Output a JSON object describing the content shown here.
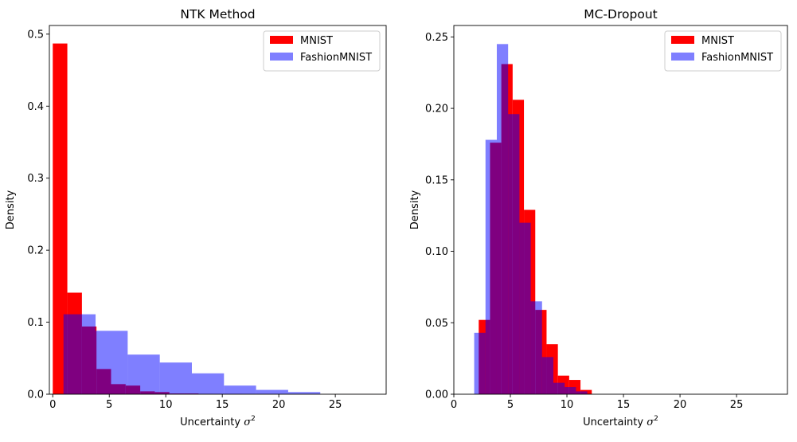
{
  "chart_data": [
    {
      "type": "bar",
      "title": "NTK Method",
      "xlabel": "Uncertainty σ²",
      "xlabel_text": "Uncertainty ",
      "xlabel_symbol": "σ",
      "xlabel_sup": "2",
      "ylabel": "Density",
      "xlim": [
        -0.3,
        29.5
      ],
      "ylim": [
        0,
        0.512
      ],
      "xticks": [
        0,
        5,
        10,
        15,
        20,
        25
      ],
      "yticks": [
        0.0,
        0.1,
        0.2,
        0.3,
        0.4,
        0.5
      ],
      "ytick_labels": [
        "0.0",
        "0.1",
        "0.2",
        "0.3",
        "0.4",
        "0.5"
      ],
      "grid": false,
      "legend_position": "top-right",
      "series": [
        {
          "name": "MNIST",
          "color": "#ff0000",
          "alpha": 1.0,
          "bin_edges": [
            0.0,
            1.29,
            2.58,
            3.87,
            5.16,
            6.45,
            7.74,
            9.03,
            10.32,
            11.61,
            12.9,
            14.19,
            15.48,
            16.77,
            18.06,
            19.35,
            20.64,
            21.93,
            23.22,
            24.51,
            25.8,
            27.09,
            28.38
          ],
          "values": [
            0.487,
            0.141,
            0.094,
            0.035,
            0.014,
            0.012,
            0.004,
            0.003,
            0.001,
            0.001,
            0.0005,
            0.0004,
            0.0003,
            0.0002,
            0.0002,
            0.0001,
            0.0001,
            0.0001,
            0.0001,
            0.0001,
            0.0001,
            0.0001
          ]
        },
        {
          "name": "FashionMNIST",
          "color": "#0000ff",
          "alpha": 0.5,
          "bin_edges": [
            0.95,
            3.79,
            6.63,
            9.47,
            12.31,
            15.15,
            17.99,
            20.83,
            23.67
          ],
          "values": [
            0.111,
            0.088,
            0.055,
            0.044,
            0.029,
            0.012,
            0.006,
            0.003
          ]
        }
      ]
    },
    {
      "type": "bar",
      "title": "MC-Dropout",
      "xlabel": "Uncertainty σ²",
      "xlabel_text": "Uncertainty ",
      "xlabel_symbol": "σ",
      "xlabel_sup": "2",
      "ylabel": "Density",
      "xlim": [
        0,
        29.5
      ],
      "ylim": [
        0,
        0.258
      ],
      "xticks": [
        0,
        5,
        10,
        15,
        20,
        25
      ],
      "yticks": [
        0.0,
        0.05,
        0.1,
        0.15,
        0.2,
        0.25
      ],
      "ytick_labels": [
        "0.00",
        "0.05",
        "0.10",
        "0.15",
        "0.20",
        "0.25"
      ],
      "grid": false,
      "legend_position": "top-right",
      "series": [
        {
          "name": "MNIST",
          "color": "#ff0000",
          "alpha": 1.0,
          "bin_edges": [
            2.2,
            3.2,
            4.2,
            5.2,
            6.2,
            7.2,
            8.2,
            9.2,
            10.2,
            11.2,
            12.2,
            13.2
          ],
          "values": [
            0.052,
            0.176,
            0.231,
            0.206,
            0.129,
            0.059,
            0.035,
            0.013,
            0.01,
            0.003,
            0.0
          ]
        },
        {
          "name": "FashionMNIST",
          "color": "#0000ff",
          "alpha": 0.5,
          "bin_edges": [
            1.8,
            2.8,
            3.8,
            4.8,
            5.8,
            6.8,
            7.8,
            8.8,
            9.8,
            10.8,
            11.8,
            12.8
          ],
          "values": [
            0.043,
            0.178,
            0.245,
            0.196,
            0.12,
            0.065,
            0.026,
            0.008,
            0.005,
            0.002,
            0.0
          ]
        }
      ]
    }
  ]
}
